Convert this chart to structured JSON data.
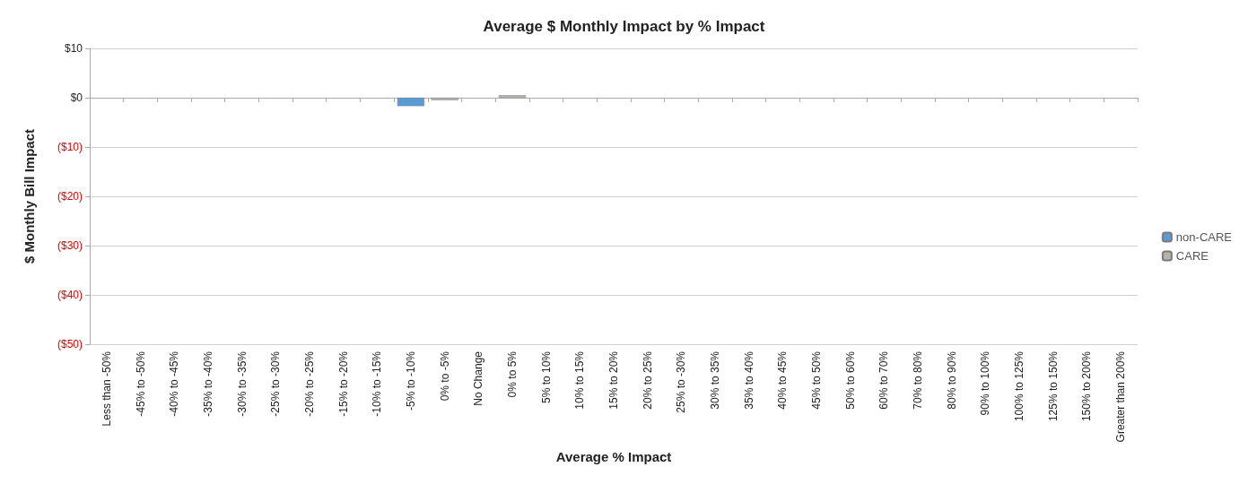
{
  "chart_data": {
    "type": "bar",
    "title": "Average $ Monthly Impact by % Impact",
    "xlabel": "Average % Impact",
    "ylabel": "$ Monthly Bill Impact",
    "categories": [
      "Less than -50%",
      "-45% to -50%",
      "-40% to -45%",
      "-35% to -40%",
      "-30% to -35%",
      "-25% to -30%",
      "-20% to -25%",
      "-15% to -20%",
      "-10% to -15%",
      "-5% to -10%",
      "0% to -5%",
      "No Change",
      "0% to 5%",
      "5% to 10%",
      "10% to 15%",
      "15% to 20%",
      "20% to 25%",
      "25% to -30%",
      "30% to 35%",
      "35% to 40%",
      "40% to 45%",
      "45% to 50%",
      "50% to 60%",
      "60% to 70%",
      "70% to 80%",
      "80% to 90%",
      "90% to 100%",
      "100% to 125%",
      "125% to 150%",
      "150% to 200%",
      "Greater than 200%"
    ],
    "series": [
      {
        "name": "non-CARE",
        "color": "#5b9bd5",
        "values": [
          null,
          null,
          null,
          null,
          null,
          null,
          null,
          null,
          null,
          -1.7,
          null,
          null,
          null,
          null,
          null,
          null,
          null,
          null,
          null,
          null,
          null,
          null,
          null,
          null,
          null,
          null,
          null,
          null,
          null,
          null,
          null
        ]
      },
      {
        "name": "CARE",
        "color": "#b4b4ac",
        "values": [
          null,
          null,
          null,
          null,
          null,
          null,
          null,
          null,
          null,
          null,
          -0.5,
          null,
          0.5,
          null,
          null,
          null,
          null,
          null,
          null,
          null,
          null,
          null,
          null,
          null,
          null,
          null,
          null,
          null,
          null,
          null,
          null
        ]
      }
    ],
    "ylim": [
      -50,
      10
    ],
    "yticks": [
      {
        "value": 10,
        "label": "$10"
      },
      {
        "value": 0,
        "label": "$0"
      },
      {
        "value": -10,
        "label": "($10)"
      },
      {
        "value": -20,
        "label": "($20)"
      },
      {
        "value": -30,
        "label": "($30)"
      },
      {
        "value": -40,
        "label": "($40)"
      },
      {
        "value": -50,
        "label": "($50)"
      }
    ],
    "grid": "y",
    "legend": "right"
  }
}
